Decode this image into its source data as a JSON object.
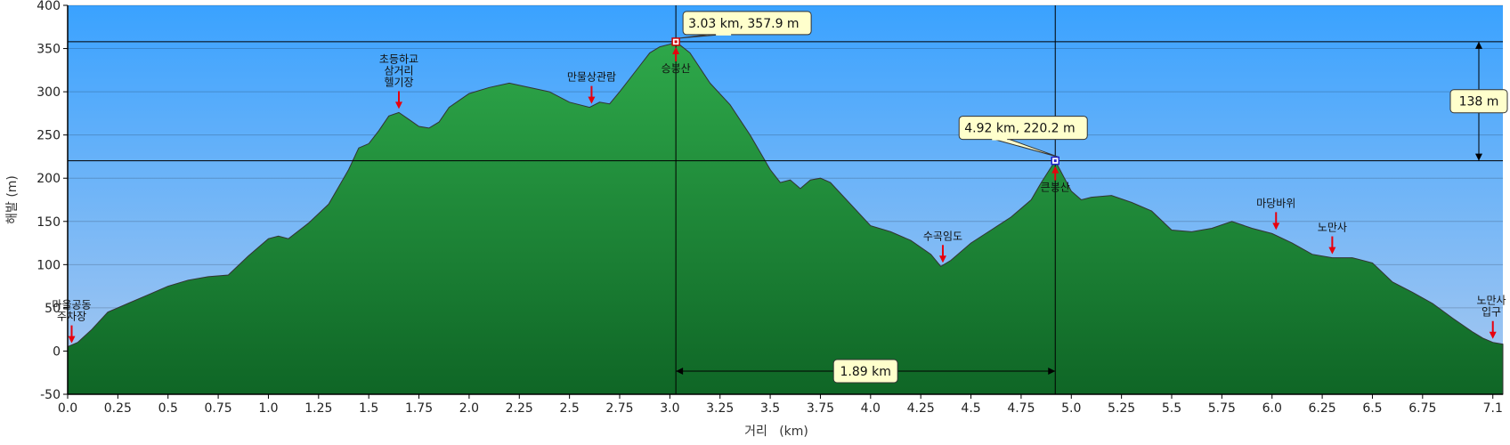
{
  "chart_data": {
    "type": "area",
    "xlabel": "거리   (km)",
    "ylabel": "해발 (m)",
    "xlim": [
      0,
      7.15
    ],
    "ylim": [
      -50,
      400
    ],
    "x_ticks": [
      "0.0",
      "0.25",
      "0.5",
      "0.75",
      "1.0",
      "1.25",
      "1.5",
      "1.75",
      "2.0",
      "2.25",
      "2.5",
      "2.75",
      "3.0",
      "3.25",
      "3.5",
      "3.75",
      "4.0",
      "4.25",
      "4.5",
      "4.75",
      "5.0",
      "5.25",
      "5.5",
      "5.75",
      "6.0",
      "6.25",
      "6.5",
      "6.75",
      "7.1"
    ],
    "y_ticks": [
      "-50",
      "0",
      "50",
      "100",
      "150",
      "200",
      "250",
      "300",
      "350",
      "400"
    ],
    "grid": true,
    "profile": {
      "x": [
        0.0,
        0.05,
        0.12,
        0.2,
        0.3,
        0.4,
        0.5,
        0.6,
        0.7,
        0.8,
        0.9,
        1.0,
        1.05,
        1.1,
        1.2,
        1.3,
        1.4,
        1.45,
        1.5,
        1.55,
        1.6,
        1.65,
        1.7,
        1.75,
        1.8,
        1.85,
        1.9,
        2.0,
        2.1,
        2.2,
        2.3,
        2.4,
        2.5,
        2.55,
        2.6,
        2.65,
        2.7,
        2.75,
        2.8,
        2.85,
        2.9,
        2.95,
        3.0,
        3.03,
        3.1,
        3.2,
        3.3,
        3.4,
        3.5,
        3.55,
        3.6,
        3.65,
        3.7,
        3.75,
        3.8,
        3.9,
        4.0,
        4.1,
        4.2,
        4.3,
        4.35,
        4.4,
        4.5,
        4.6,
        4.7,
        4.8,
        4.85,
        4.92,
        5.0,
        5.05,
        5.1,
        5.2,
        5.3,
        5.4,
        5.5,
        5.6,
        5.7,
        5.8,
        5.9,
        6.0,
        6.1,
        6.2,
        6.3,
        6.4,
        6.5,
        6.6,
        6.7,
        6.8,
        6.9,
        7.0,
        7.05,
        7.1,
        7.15
      ],
      "y": [
        5,
        10,
        25,
        45,
        55,
        65,
        75,
        82,
        86,
        88,
        110,
        130,
        133,
        130,
        148,
        170,
        210,
        235,
        240,
        255,
        272,
        276,
        268,
        260,
        258,
        265,
        282,
        298,
        305,
        310,
        305,
        300,
        288,
        285,
        282,
        288,
        286,
        300,
        315,
        330,
        345,
        352,
        355,
        357.9,
        345,
        310,
        285,
        250,
        210,
        195,
        198,
        188,
        198,
        200,
        195,
        170,
        145,
        138,
        128,
        112,
        98,
        105,
        125,
        140,
        155,
        175,
        195,
        220.2,
        185,
        175,
        178,
        180,
        172,
        162,
        140,
        138,
        142,
        150,
        142,
        136,
        125,
        112,
        108,
        108,
        102,
        80,
        68,
        55,
        38,
        22,
        15,
        10,
        8
      ]
    },
    "series": [
      {
        "x": "profile.x",
        "y": "profile.y"
      }
    ],
    "markers": [
      {
        "x": 3.03,
        "y": 357.9,
        "label": "3.03 km, 357.9 m"
      },
      {
        "x": 4.92,
        "y": 220.2,
        "label": "4.92 km, 220.2 m"
      }
    ],
    "distance_label": "1.89 km",
    "height_diff_label": "138 m",
    "waypoints": [
      {
        "x": 0.02,
        "y": 5,
        "label_lines": [
          "마을공동",
          "주차장"
        ],
        "position": "above"
      },
      {
        "x": 1.65,
        "y": 276,
        "label_lines": [
          "초등하교",
          "삼거리",
          "헬기장"
        ],
        "position": "above"
      },
      {
        "x": 2.61,
        "y": 282,
        "label_lines": [
          "만물상관람"
        ],
        "position": "above"
      },
      {
        "x": 3.03,
        "y": 357.9,
        "label_lines": [
          "승봉산"
        ],
        "position": "below"
      },
      {
        "x": 4.36,
        "y": 98,
        "label_lines": [
          "수곡임도"
        ],
        "position": "above"
      },
      {
        "x": 4.92,
        "y": 220.2,
        "label_lines": [
          "큰봉산"
        ],
        "position": "below"
      },
      {
        "x": 6.02,
        "y": 136,
        "label_lines": [
          "마당바위"
        ],
        "position": "above"
      },
      {
        "x": 6.3,
        "y": 108,
        "label_lines": [
          "노만사"
        ],
        "position": "above"
      },
      {
        "x": 7.1,
        "y": 10,
        "label_lines": [
          "노만사",
          "입구"
        ],
        "position": "above"
      }
    ],
    "colors": {
      "sky_top": "#3aa2ff",
      "sky_bottom": "#aac9ef",
      "fill_top": "#2ea84a",
      "fill_bottom": "#0f6626",
      "outline": "#333333",
      "arrow": "#e8000d",
      "callout_bg": "#ffffcc"
    }
  }
}
